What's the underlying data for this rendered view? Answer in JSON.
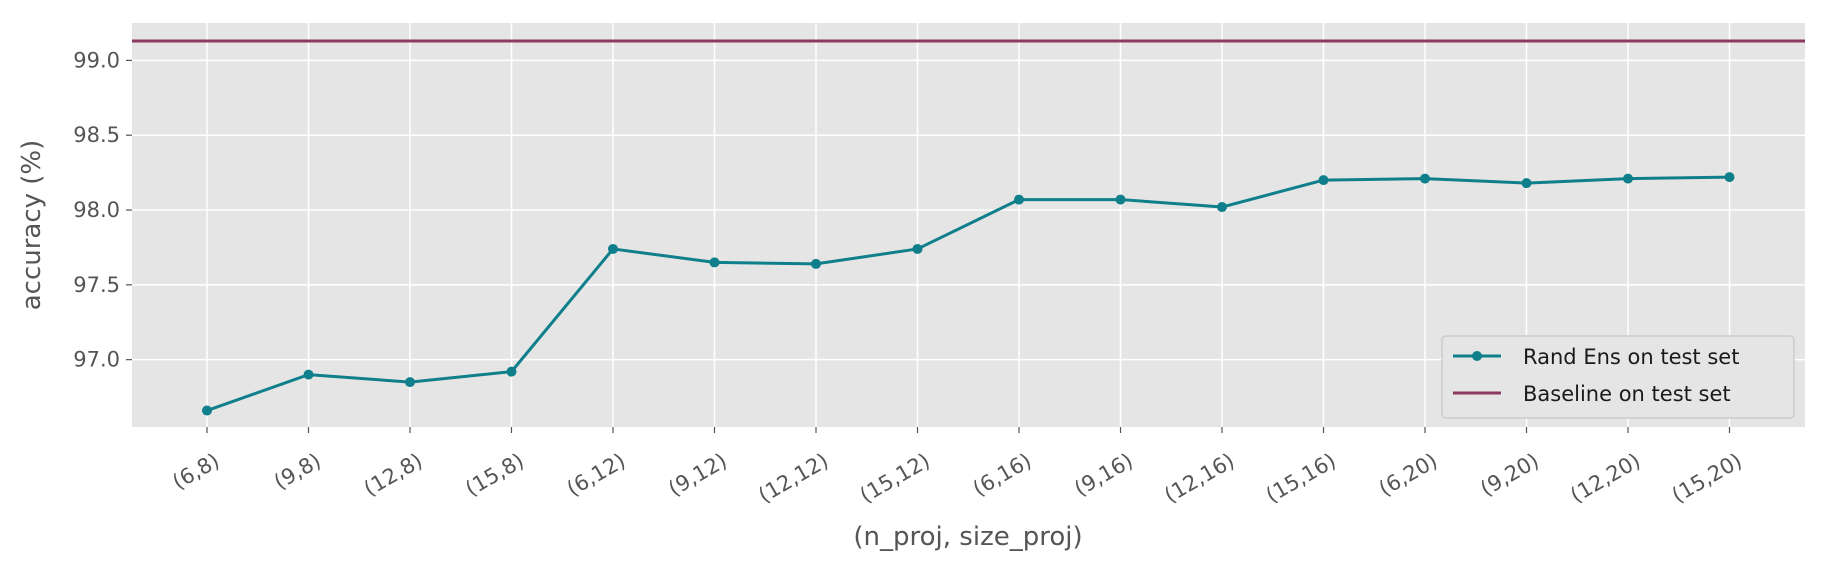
{
  "chart_data": {
    "type": "line",
    "title": "",
    "xlabel": "(n_proj, size_proj)",
    "ylabel": "accuracy (%)",
    "categories": [
      "(6,8)",
      "(9,8)",
      "(12,8)",
      "(15,8)",
      "(6,12)",
      "(9,12)",
      "(12,12)",
      "(15,12)",
      "(6,16)",
      "(9,16)",
      "(12,16)",
      "(15,16)",
      "(6,20)",
      "(9,20)",
      "(12,20)",
      "(15,20)"
    ],
    "series": [
      {
        "name": "Rand Ens on test set",
        "color": "#0f7f8c",
        "marker": "circle",
        "values": [
          96.66,
          96.9,
          96.85,
          96.92,
          97.74,
          97.65,
          97.64,
          97.74,
          98.07,
          98.07,
          98.02,
          98.2,
          98.21,
          98.18,
          98.21,
          98.22
        ]
      },
      {
        "name": "Baseline on test set",
        "color": "#8b3a62",
        "type": "hline",
        "value": 99.13
      }
    ],
    "yticks": [
      97.0,
      97.5,
      98.0,
      98.5,
      99.0
    ],
    "ylim": [
      96.55,
      99.25
    ],
    "grid": true,
    "legend": "lower-right",
    "style": {
      "background": "#e5e5e5",
      "grid_color": "#ffffff",
      "tick_color": "#555555"
    }
  }
}
